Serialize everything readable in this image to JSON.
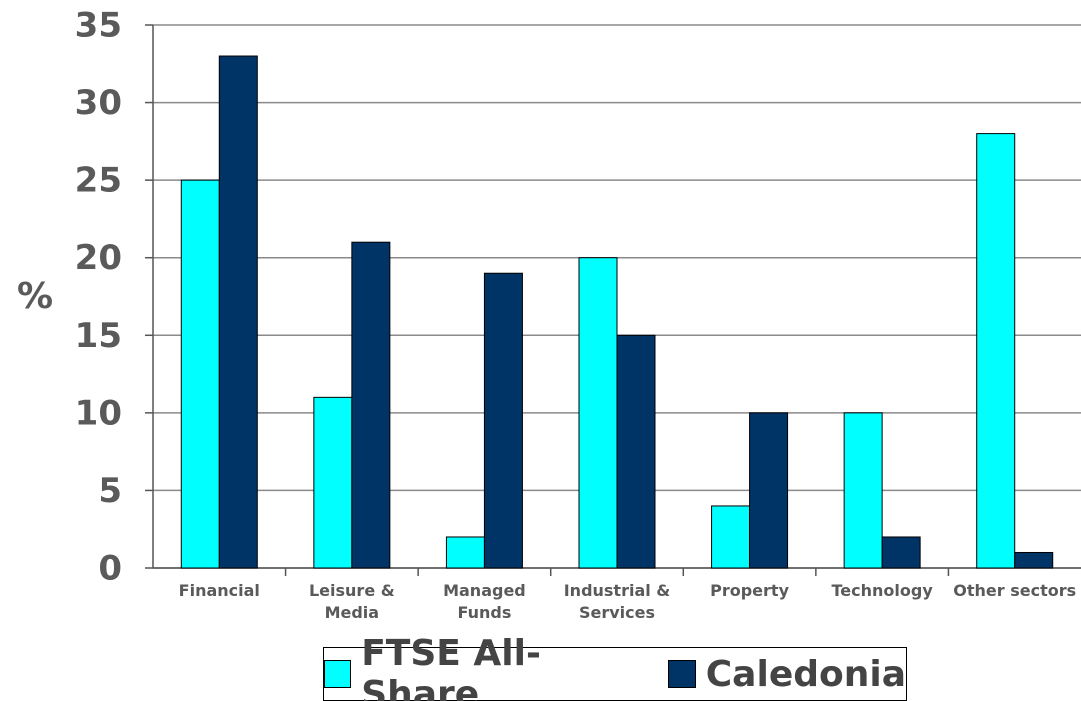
{
  "chart_data": {
    "type": "bar",
    "ylabel": "%",
    "categories": [
      "Financial",
      "Leisure & Media",
      "Managed Funds",
      "Industrial & Services",
      "Property",
      "Technology",
      "Other sectors"
    ],
    "series": [
      {
        "name": "FTSE All-Share",
        "color": "#00ffff",
        "values": [
          25,
          11,
          2,
          20,
          4,
          10,
          28
        ]
      },
      {
        "name": "Caledonia",
        "color": "#003366",
        "values": [
          33,
          21,
          19,
          15,
          10,
          2,
          1
        ]
      }
    ],
    "ylim": [
      0,
      35
    ],
    "yticks": [
      0,
      5,
      10,
      15,
      20,
      25,
      30,
      35
    ],
    "grid": true
  }
}
